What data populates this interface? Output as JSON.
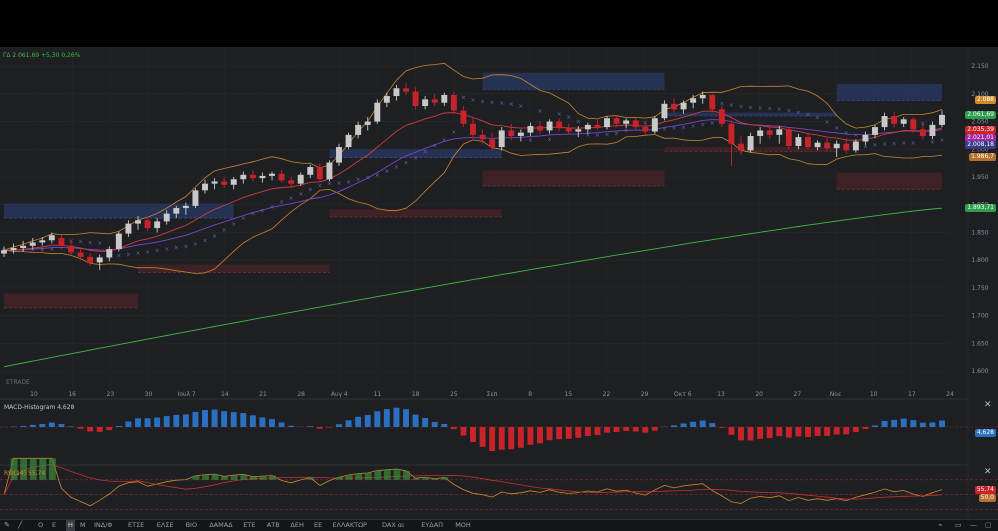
{
  "header": {
    "instrument_label": "ΓΔ",
    "last": "2.061,69",
    "change": "+5,30",
    "change_pct": "0,26%"
  },
  "watermark": "ΕΤRADE",
  "price_axis": {
    "ticks": [
      "2.150",
      "2.100",
      "2.050",
      "2.000",
      "1.950",
      "1.900",
      "1.850",
      "1.800",
      "1.750",
      "1.700",
      "1.650",
      "1.600"
    ]
  },
  "time_axis": {
    "ticks": [
      "10",
      "16",
      "23",
      "30",
      "Ιουλ 7",
      "14",
      "21",
      "28",
      "Αυγ 4",
      "11",
      "18",
      "25",
      "Σεπ",
      "8",
      "15",
      "22",
      "29",
      "Οκτ 6",
      "13",
      "20",
      "27",
      "Νοε",
      "10",
      "17",
      "24"
    ]
  },
  "price_tags": [
    {
      "value": "2.088",
      "color": "#d08a2c"
    },
    {
      "value": "2.061,69",
      "color": "#2e9e4a"
    },
    {
      "value": "2.035,39",
      "color": "#c8232b"
    },
    {
      "value": "2.021,01",
      "color": "#a0269c"
    },
    {
      "value": "2.008,18",
      "color": "#3a3a8a"
    },
    {
      "value": "1.986,7",
      "color": "#b4702a"
    },
    {
      "value": "1.893,71",
      "color": "#2e9e4a"
    }
  ],
  "macd": {
    "title": "MACD-Histogram",
    "value": "4,628",
    "tag_color": "#2b6fc0"
  },
  "rsi": {
    "title": "RSI(14)",
    "value": "55,74",
    "tag_value": "55,74",
    "tag_value2": "50,0"
  },
  "toolbar": {
    "timeframes": [
      "Ο",
      "Ε",
      "Η",
      "Μ",
      "ΙΝΔ/Φ",
      "ΕΤΣΕ",
      "ΕΛΣΕ",
      "BIO",
      "ΔΑΜΑΔ",
      "ΕΤΕ",
      "ΑΤΒ",
      "ΔΕΗ",
      "ΕΕ",
      "ΕΛΛΑΚΤΩΡ",
      "DAX αι",
      "ΕΥΔΑΠ",
      "ΜΟΗ"
    ],
    "active_index": 2
  },
  "colors": {
    "up": "#c9c9c9",
    "down": "#c8232b",
    "bb": "#c9852b",
    "ema_red": "#d23b3b",
    "ema_purple": "#7a45c8",
    "sma_green": "#3fb93f",
    "supply_zone": "#2a3a66",
    "demand_zone": "#4a2327",
    "macd_pos": "#2b6fc0",
    "macd_neg": "#c8232b",
    "rsi_line": "#d08a2c",
    "rsi_ma": "#c83030"
  },
  "chart_data": {
    "type": "candlestick",
    "title": "",
    "xlabel": "",
    "ylabel": "",
    "ylim": [
      1575,
      2170
    ],
    "candles": [
      {
        "o": 1812,
        "h": 1825,
        "l": 1806,
        "c": 1818
      },
      {
        "o": 1818,
        "h": 1830,
        "l": 1812,
        "c": 1822
      },
      {
        "o": 1822,
        "h": 1835,
        "l": 1815,
        "c": 1826
      },
      {
        "o": 1826,
        "h": 1840,
        "l": 1820,
        "c": 1832
      },
      {
        "o": 1832,
        "h": 1842,
        "l": 1826,
        "c": 1836
      },
      {
        "o": 1836,
        "h": 1850,
        "l": 1830,
        "c": 1845
      },
      {
        "o": 1840,
        "h": 1846,
        "l": 1820,
        "c": 1826
      },
      {
        "o": 1826,
        "h": 1835,
        "l": 1808,
        "c": 1814
      },
      {
        "o": 1814,
        "h": 1822,
        "l": 1800,
        "c": 1806
      },
      {
        "o": 1806,
        "h": 1812,
        "l": 1790,
        "c": 1795
      },
      {
        "o": 1796,
        "h": 1810,
        "l": 1782,
        "c": 1805
      },
      {
        "o": 1805,
        "h": 1825,
        "l": 1798,
        "c": 1820
      },
      {
        "o": 1820,
        "h": 1852,
        "l": 1816,
        "c": 1848
      },
      {
        "o": 1848,
        "h": 1872,
        "l": 1842,
        "c": 1866
      },
      {
        "o": 1866,
        "h": 1880,
        "l": 1855,
        "c": 1872
      },
      {
        "o": 1872,
        "h": 1878,
        "l": 1852,
        "c": 1858
      },
      {
        "o": 1858,
        "h": 1876,
        "l": 1850,
        "c": 1870
      },
      {
        "o": 1870,
        "h": 1890,
        "l": 1864,
        "c": 1884
      },
      {
        "o": 1884,
        "h": 1898,
        "l": 1876,
        "c": 1894
      },
      {
        "o": 1894,
        "h": 1904,
        "l": 1882,
        "c": 1898
      },
      {
        "o": 1898,
        "h": 1930,
        "l": 1894,
        "c": 1926
      },
      {
        "o": 1926,
        "h": 1945,
        "l": 1920,
        "c": 1938
      },
      {
        "o": 1938,
        "h": 1948,
        "l": 1928,
        "c": 1942
      },
      {
        "o": 1942,
        "h": 1950,
        "l": 1930,
        "c": 1936
      },
      {
        "o": 1936,
        "h": 1950,
        "l": 1928,
        "c": 1946
      },
      {
        "o": 1946,
        "h": 1960,
        "l": 1938,
        "c": 1954
      },
      {
        "o": 1954,
        "h": 1962,
        "l": 1942,
        "c": 1948
      },
      {
        "o": 1948,
        "h": 1958,
        "l": 1940,
        "c": 1952
      },
      {
        "o": 1952,
        "h": 1960,
        "l": 1944,
        "c": 1956
      },
      {
        "o": 1956,
        "h": 1962,
        "l": 1940,
        "c": 1944
      },
      {
        "o": 1944,
        "h": 1950,
        "l": 1930,
        "c": 1938
      },
      {
        "o": 1938,
        "h": 1958,
        "l": 1934,
        "c": 1954
      },
      {
        "o": 1954,
        "h": 1972,
        "l": 1948,
        "c": 1968
      },
      {
        "o": 1968,
        "h": 1975,
        "l": 1940,
        "c": 1946
      },
      {
        "o": 1946,
        "h": 1980,
        "l": 1942,
        "c": 1976
      },
      {
        "o": 1976,
        "h": 2010,
        "l": 1970,
        "c": 2004
      },
      {
        "o": 2004,
        "h": 2030,
        "l": 2000,
        "c": 2026
      },
      {
        "o": 2026,
        "h": 2050,
        "l": 2020,
        "c": 2044
      },
      {
        "o": 2044,
        "h": 2058,
        "l": 2034,
        "c": 2050
      },
      {
        "o": 2050,
        "h": 2090,
        "l": 2046,
        "c": 2084
      },
      {
        "o": 2084,
        "h": 2102,
        "l": 2076,
        "c": 2096
      },
      {
        "o": 2096,
        "h": 2116,
        "l": 2088,
        "c": 2110
      },
      {
        "o": 2110,
        "h": 2120,
        "l": 2098,
        "c": 2104
      },
      {
        "o": 2104,
        "h": 2112,
        "l": 2072,
        "c": 2078
      },
      {
        "o": 2078,
        "h": 2096,
        "l": 2072,
        "c": 2090
      },
      {
        "o": 2090,
        "h": 2100,
        "l": 2078,
        "c": 2084
      },
      {
        "o": 2084,
        "h": 2102,
        "l": 2078,
        "c": 2098
      },
      {
        "o": 2098,
        "h": 2104,
        "l": 2064,
        "c": 2070
      },
      {
        "o": 2070,
        "h": 2078,
        "l": 2040,
        "c": 2046
      },
      {
        "o": 2046,
        "h": 2058,
        "l": 2020,
        "c": 2026
      },
      {
        "o": 2026,
        "h": 2036,
        "l": 2010,
        "c": 2018
      },
      {
        "o": 2018,
        "h": 2030,
        "l": 1998,
        "c": 2004
      },
      {
        "o": 2004,
        "h": 2040,
        "l": 1998,
        "c": 2034
      },
      {
        "o": 2034,
        "h": 2046,
        "l": 2016,
        "c": 2024
      },
      {
        "o": 2024,
        "h": 2036,
        "l": 2014,
        "c": 2030
      },
      {
        "o": 2030,
        "h": 2048,
        "l": 2024,
        "c": 2042
      },
      {
        "o": 2042,
        "h": 2050,
        "l": 2028,
        "c": 2034
      },
      {
        "o": 2034,
        "h": 2054,
        "l": 2028,
        "c": 2050
      },
      {
        "o": 2050,
        "h": 2056,
        "l": 2032,
        "c": 2038
      },
      {
        "o": 2038,
        "h": 2046,
        "l": 2026,
        "c": 2032
      },
      {
        "o": 2032,
        "h": 2042,
        "l": 2022,
        "c": 2036
      },
      {
        "o": 2036,
        "h": 2048,
        "l": 2028,
        "c": 2044
      },
      {
        "o": 2044,
        "h": 2056,
        "l": 2034,
        "c": 2040
      },
      {
        "o": 2040,
        "h": 2060,
        "l": 2036,
        "c": 2056
      },
      {
        "o": 2056,
        "h": 2062,
        "l": 2040,
        "c": 2046
      },
      {
        "o": 2046,
        "h": 2056,
        "l": 2038,
        "c": 2052
      },
      {
        "o": 2052,
        "h": 2058,
        "l": 2036,
        "c": 2040
      },
      {
        "o": 2040,
        "h": 2046,
        "l": 2026,
        "c": 2032
      },
      {
        "o": 2032,
        "h": 2060,
        "l": 2028,
        "c": 2056
      },
      {
        "o": 2056,
        "h": 2088,
        "l": 2052,
        "c": 2082
      },
      {
        "o": 2082,
        "h": 2092,
        "l": 2066,
        "c": 2072
      },
      {
        "o": 2072,
        "h": 2088,
        "l": 2064,
        "c": 2084
      },
      {
        "o": 2084,
        "h": 2098,
        "l": 2074,
        "c": 2092
      },
      {
        "o": 2092,
        "h": 2104,
        "l": 2082,
        "c": 2098
      },
      {
        "o": 2098,
        "h": 2100,
        "l": 2066,
        "c": 2072
      },
      {
        "o": 2072,
        "h": 2078,
        "l": 2040,
        "c": 2046
      },
      {
        "o": 2046,
        "h": 2052,
        "l": 1970,
        "c": 2010
      },
      {
        "o": 2010,
        "h": 2024,
        "l": 1990,
        "c": 1998
      },
      {
        "o": 1998,
        "h": 2030,
        "l": 1994,
        "c": 2024
      },
      {
        "o": 2024,
        "h": 2040,
        "l": 2010,
        "c": 2034
      },
      {
        "o": 2034,
        "h": 2044,
        "l": 2020,
        "c": 2026
      },
      {
        "o": 2026,
        "h": 2042,
        "l": 2010,
        "c": 2036
      },
      {
        "o": 2036,
        "h": 2040,
        "l": 2000,
        "c": 2006
      },
      {
        "o": 2006,
        "h": 2028,
        "l": 2000,
        "c": 2022
      },
      {
        "o": 2022,
        "h": 2030,
        "l": 2000,
        "c": 2004
      },
      {
        "o": 2004,
        "h": 2016,
        "l": 1998,
        "c": 2012
      },
      {
        "o": 2012,
        "h": 2020,
        "l": 1998,
        "c": 2002
      },
      {
        "o": 2002,
        "h": 2016,
        "l": 1986,
        "c": 2010
      },
      {
        "o": 2010,
        "h": 2020,
        "l": 1992,
        "c": 1998
      },
      {
        "o": 1998,
        "h": 2018,
        "l": 1994,
        "c": 2014
      },
      {
        "o": 2014,
        "h": 2032,
        "l": 2008,
        "c": 2026
      },
      {
        "o": 2026,
        "h": 2044,
        "l": 2020,
        "c": 2040
      },
      {
        "o": 2040,
        "h": 2066,
        "l": 2034,
        "c": 2060
      },
      {
        "o": 2060,
        "h": 2068,
        "l": 2040,
        "c": 2046
      },
      {
        "o": 2046,
        "h": 2058,
        "l": 2040,
        "c": 2054
      },
      {
        "o": 2054,
        "h": 2058,
        "l": 2030,
        "c": 2036
      },
      {
        "o": 2036,
        "h": 2048,
        "l": 2018,
        "c": 2024
      },
      {
        "o": 2024,
        "h": 2050,
        "l": 2018,
        "c": 2044
      },
      {
        "o": 2044,
        "h": 2070,
        "l": 2040,
        "c": 2062
      }
    ],
    "sma_long_range": [
      1608,
      1893.71
    ]
  }
}
